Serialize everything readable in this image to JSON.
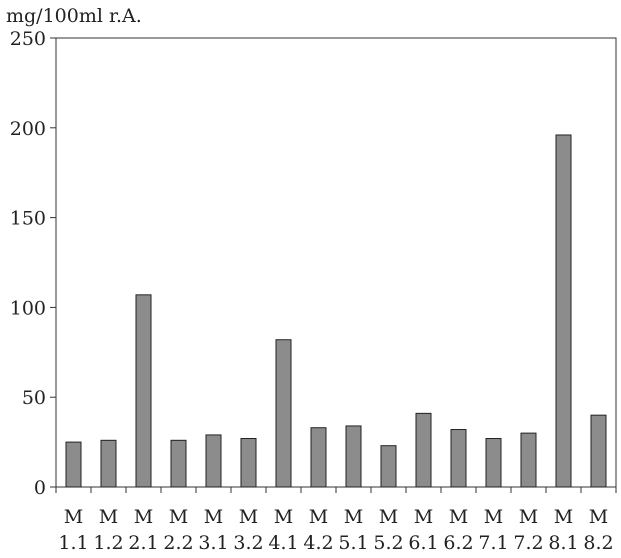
{
  "chart_data": {
    "type": "bar",
    "title": "",
    "ylabel": "mg/100ml r.A.",
    "xlabel": "",
    "ylim": [
      0,
      250
    ],
    "yticks": [
      0,
      50,
      100,
      150,
      200,
      250
    ],
    "grid": false,
    "legend": "none",
    "bar_color": "#8c8c8c",
    "categories": [
      {
        "top": "M",
        "bottom": "1.1"
      },
      {
        "top": "M",
        "bottom": "1.2"
      },
      {
        "top": "M",
        "bottom": "2.1"
      },
      {
        "top": "M",
        "bottom": "2.2"
      },
      {
        "top": "M",
        "bottom": "3.1"
      },
      {
        "top": "M",
        "bottom": "3.2"
      },
      {
        "top": "M",
        "bottom": "4.1"
      },
      {
        "top": "M",
        "bottom": "4.2"
      },
      {
        "top": "M",
        "bottom": "5.1"
      },
      {
        "top": "M",
        "bottom": "5.2"
      },
      {
        "top": "M",
        "bottom": "6.1"
      },
      {
        "top": "M",
        "bottom": "6.2"
      },
      {
        "top": "M",
        "bottom": "7.1"
      },
      {
        "top": "M",
        "bottom": "7.2"
      },
      {
        "top": "M",
        "bottom": "8.1"
      },
      {
        "top": "M",
        "bottom": "8.2"
      }
    ],
    "values": [
      25,
      26,
      107,
      26,
      29,
      27,
      82,
      33,
      34,
      23,
      41,
      32,
      27,
      30,
      196,
      40
    ]
  }
}
